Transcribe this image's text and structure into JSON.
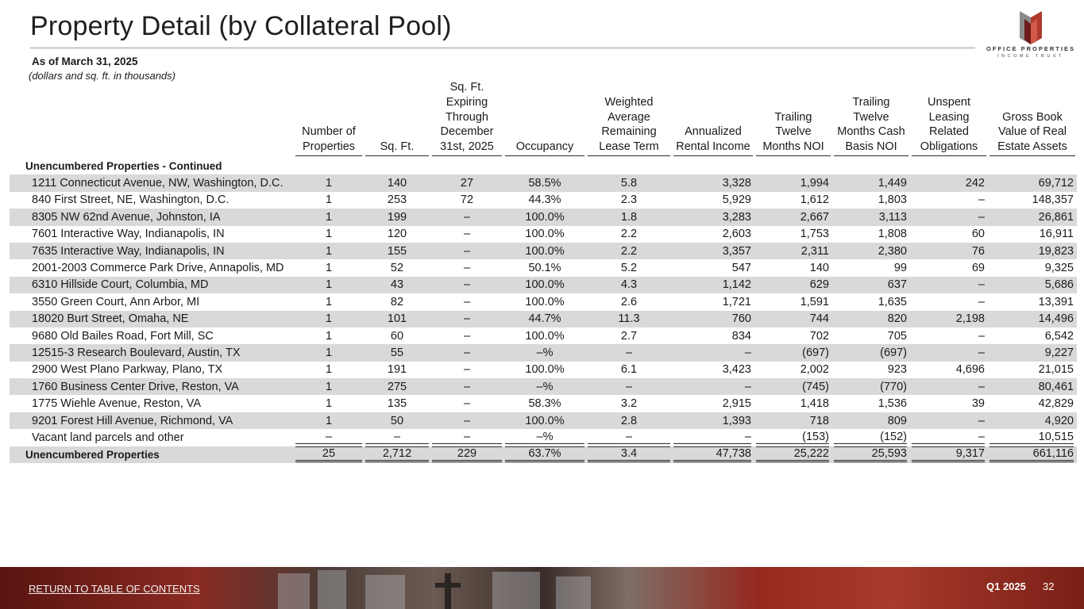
{
  "page": {
    "title": "Property Detail (by Collateral Pool)",
    "as_of": "As of March 31, 2025",
    "units_note": "(dollars and sq. ft. in thousands)"
  },
  "logo": {
    "line1": "OFFICE PROPERTIES",
    "line2": "INCOME TRUST",
    "colors": {
      "dark": "#6e1a1a",
      "red": "#b03a2e",
      "gray": "#8a8a8a"
    }
  },
  "table": {
    "headers": [
      "Number of Properties",
      "Sq. Ft.",
      "Sq. Ft. Expiring Through December 31st, 2025",
      "Occupancy",
      "Weighted Average Remaining Lease Term",
      "Annualized Rental Income",
      "Trailing Twelve Months NOI",
      "Trailing Twelve Months Cash Basis NOI",
      "Unspent Leasing Related Obligations",
      "Gross Book Value of Real Estate Assets"
    ],
    "section_label": "Unencumbered Properties - Continued",
    "rows": [
      {
        "name": "1211 Connecticut Avenue, NW, Washington, D.C.",
        "values": [
          "1",
          "140",
          "27",
          "58.5%",
          "5.8",
          "3,328",
          "1,994",
          "1,449",
          "242",
          "69,712"
        ]
      },
      {
        "name": "840 First Street, NE, Washington, D.C.",
        "values": [
          "1",
          "253",
          "72",
          "44.3%",
          "2.3",
          "5,929",
          "1,612",
          "1,803",
          "–",
          "148,357"
        ]
      },
      {
        "name": "8305 NW 62nd Avenue, Johnston, IA",
        "values": [
          "1",
          "199",
          "–",
          "100.0%",
          "1.8",
          "3,283",
          "2,667",
          "3,113",
          "–",
          "26,861"
        ]
      },
      {
        "name": "7601 Interactive Way, Indianapolis, IN",
        "values": [
          "1",
          "120",
          "–",
          "100.0%",
          "2.2",
          "2,603",
          "1,753",
          "1,808",
          "60",
          "16,911"
        ]
      },
      {
        "name": "7635 Interactive Way, Indianapolis, IN",
        "values": [
          "1",
          "155",
          "–",
          "100.0%",
          "2.2",
          "3,357",
          "2,311",
          "2,380",
          "76",
          "19,823"
        ]
      },
      {
        "name": "2001-2003 Commerce Park Drive, Annapolis, MD",
        "values": [
          "1",
          "52",
          "–",
          "50.1%",
          "5.2",
          "547",
          "140",
          "99",
          "69",
          "9,325"
        ]
      },
      {
        "name": "6310 Hillside Court, Columbia, MD",
        "values": [
          "1",
          "43",
          "–",
          "100.0%",
          "4.3",
          "1,142",
          "629",
          "637",
          "–",
          "5,686"
        ]
      },
      {
        "name": "3550 Green Court, Ann Arbor, MI",
        "values": [
          "1",
          "82",
          "–",
          "100.0%",
          "2.6",
          "1,721",
          "1,591",
          "1,635",
          "–",
          "13,391"
        ]
      },
      {
        "name": "18020 Burt Street, Omaha, NE",
        "values": [
          "1",
          "101",
          "–",
          "44.7%",
          "11.3",
          "760",
          "744",
          "820",
          "2,198",
          "14,496"
        ]
      },
      {
        "name": "9680 Old Bailes Road, Fort Mill, SC",
        "values": [
          "1",
          "60",
          "–",
          "100.0%",
          "2.7",
          "834",
          "702",
          "705",
          "–",
          "6,542"
        ]
      },
      {
        "name": "12515-3 Research Boulevard, Austin, TX",
        "values": [
          "1",
          "55",
          "–",
          "–%",
          "–",
          "–",
          "(697)",
          "(697)",
          "–",
          "9,227"
        ]
      },
      {
        "name": "2900 West Plano Parkway, Plano, TX",
        "values": [
          "1",
          "191",
          "–",
          "100.0%",
          "6.1",
          "3,423",
          "2,002",
          "923",
          "4,696",
          "21,015"
        ]
      },
      {
        "name": "1760 Business Center Drive, Reston, VA",
        "values": [
          "1",
          "275",
          "–",
          "–%",
          "–",
          "–",
          "(745)",
          "(770)",
          "–",
          "80,461"
        ]
      },
      {
        "name": "1775 Wiehle Avenue, Reston, VA",
        "values": [
          "1",
          "135",
          "–",
          "58.3%",
          "3.2",
          "2,915",
          "1,418",
          "1,536",
          "39",
          "42,829"
        ]
      },
      {
        "name": "9201 Forest Hill Avenue, Richmond, VA",
        "values": [
          "1",
          "50",
          "–",
          "100.0%",
          "2.8",
          "1,393",
          "718",
          "809",
          "–",
          "4,920"
        ]
      },
      {
        "name": "Vacant land parcels and other",
        "values": [
          "–",
          "–",
          "–",
          "–%",
          "–",
          "–",
          "(153)",
          "(152)",
          "–",
          "10,515"
        ]
      }
    ],
    "total": {
      "name": "Unencumbered Properties",
      "values": [
        "25",
        "2,712",
        "229",
        "63.7%",
        "3.4",
        "47,738",
        "25,222",
        "25,593",
        "9,317",
        "661,116"
      ]
    }
  },
  "footer": {
    "return_link": "RETURN TO TABLE OF CONTENTS",
    "quarter": "Q1 2025",
    "page_number": "32"
  }
}
